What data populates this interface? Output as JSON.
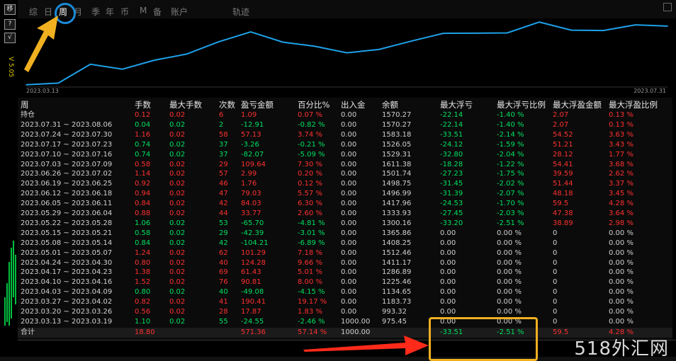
{
  "toolbar": {
    "buttons": [
      "移",
      "?",
      "√"
    ],
    "version": "V 5.05"
  },
  "tabs": [
    {
      "label": "综",
      "active": false
    },
    {
      "label": "日",
      "active": false
    },
    {
      "label": "周",
      "active": true
    },
    {
      "label": "月",
      "active": false
    },
    {
      "label": "季",
      "active": false
    },
    {
      "label": "年",
      "active": false
    },
    {
      "label": "币",
      "active": false
    },
    {
      "label": "M",
      "active": false
    },
    {
      "label": "备",
      "active": false
    },
    {
      "label": "账户",
      "active": false
    },
    {
      "label": "轨迹",
      "active": false
    }
  ],
  "chart_data": {
    "type": "line",
    "x_start": "2023.03.13",
    "x_end": "2023.07.31",
    "x": [
      "2023.03.13",
      "2023.03.20",
      "2023.03.27",
      "2023.04.03",
      "2023.04.10",
      "2023.04.17",
      "2023.04.24",
      "2023.05.01",
      "2023.05.08",
      "2023.05.15",
      "2023.05.22",
      "2023.05.29",
      "2023.06.05",
      "2023.06.12",
      "2023.06.19",
      "2023.06.26",
      "2023.07.03",
      "2023.07.10",
      "2023.07.17",
      "2023.07.24",
      "2023.07.31"
    ],
    "values": [
      975.45,
      993.32,
      1183.73,
      1134.65,
      1225.46,
      1286.89,
      1411.17,
      1512.46,
      1408.25,
      1365.86,
      1300.16,
      1333.93,
      1417.96,
      1496.99,
      1498.75,
      1501.74,
      1611.38,
      1529.31,
      1526.05,
      1583.18,
      1570.27
    ],
    "ylim": [
      960,
      1620
    ],
    "grid": false,
    "color": "#1ea0e8"
  },
  "table": {
    "headers": [
      "周",
      "手数",
      "最大手数",
      "次数",
      "盈亏金额",
      "百分比%",
      "出入金",
      "余额",
      "最大浮亏",
      "最大浮亏比例",
      "最大浮盈金额",
      "最大浮盈比例"
    ],
    "rows": [
      [
        "持仓",
        "0.12",
        "0.02",
        "6",
        "1.09",
        "0.07 %",
        "0.00",
        "1570.27",
        "-22.14",
        "-1.40 %",
        "2.07",
        "0.13 %"
      ],
      [
        "2023.07.31 ~ 2023.08.06",
        "0.04",
        "0.02",
        "2",
        "-12.91",
        "-0.82 %",
        "0.00",
        "1570.27",
        "-22.14",
        "-1.40 %",
        "2.07",
        "0.13 %"
      ],
      [
        "2023.07.24 ~ 2023.07.30",
        "1.16",
        "0.02",
        "58",
        "57.13",
        "3.74 %",
        "0.00",
        "1583.18",
        "-33.51",
        "-2.14 %",
        "54.52",
        "3.63 %"
      ],
      [
        "2023.07.17 ~ 2023.07.23",
        "0.74",
        "0.02",
        "37",
        "-3.26",
        "-0.21 %",
        "0.00",
        "1526.05",
        "-24.12",
        "-1.59 %",
        "51.21",
        "3.43 %"
      ],
      [
        "2023.07.10 ~ 2023.07.16",
        "0.74",
        "0.02",
        "37",
        "-82.07",
        "-5.09 %",
        "0.00",
        "1529.31",
        "-32.80",
        "-2.04 %",
        "28.12",
        "1.77 %"
      ],
      [
        "2023.07.03 ~ 2023.07.09",
        "0.58",
        "0.02",
        "29",
        "109.64",
        "7.30 %",
        "0.00",
        "1611.38",
        "-18.28",
        "-1.22 %",
        "54.41",
        "3.68 %"
      ],
      [
        "2023.06.26 ~ 2023.07.02",
        "1.14",
        "0.02",
        "57",
        "2.99",
        "0.20 %",
        "0.00",
        "1501.74",
        "-27.23",
        "-1.75 %",
        "39.59",
        "2.62 %"
      ],
      [
        "2023.06.19 ~ 2023.06.25",
        "0.92",
        "0.02",
        "46",
        "1.76",
        "0.12 %",
        "0.00",
        "1498.75",
        "-31.45",
        "-2.02 %",
        "51.44",
        "3.37 %"
      ],
      [
        "2023.06.12 ~ 2023.06.18",
        "0.94",
        "0.02",
        "47",
        "79.03",
        "5.57 %",
        "0.00",
        "1496.99",
        "-31.39",
        "-2.07 %",
        "48.18",
        "3.45 %"
      ],
      [
        "2023.06.05 ~ 2023.06.11",
        "0.84",
        "0.02",
        "42",
        "84.03",
        "6.30 %",
        "0.00",
        "1417.96",
        "-24.53",
        "-1.70 %",
        "59.5",
        "4.28 %"
      ],
      [
        "2023.05.29 ~ 2023.06.04",
        "0.88",
        "0.02",
        "44",
        "33.77",
        "2.60 %",
        "0.00",
        "1333.93",
        "-27.45",
        "-2.03 %",
        "47.38",
        "3.64 %"
      ],
      [
        "2023.05.22 ~ 2023.05.28",
        "1.06",
        "0.02",
        "53",
        "-65.70",
        "-4.81 %",
        "0.00",
        "1300.16",
        "-33.20",
        "-2.51 %",
        "38.89",
        "2.98 %"
      ],
      [
        "2023.05.15 ~ 2023.05.21",
        "0.58",
        "0.02",
        "29",
        "-42.39",
        "-3.01 %",
        "0.00",
        "1365.86",
        "0.00",
        "0.00 %",
        "0",
        "0.00 %"
      ],
      [
        "2023.05.08 ~ 2023.05.14",
        "0.84",
        "0.02",
        "42",
        "-104.21",
        "-6.89 %",
        "0.00",
        "1408.25",
        "0.00",
        "0.00 %",
        "0",
        "0.00 %"
      ],
      [
        "2023.05.01 ~ 2023.05.07",
        "1.24",
        "0.02",
        "62",
        "101.29",
        "7.18 %",
        "0.00",
        "1512.46",
        "0.00",
        "0.00 %",
        "0",
        "0.00 %"
      ],
      [
        "2023.04.24 ~ 2023.04.30",
        "0.80",
        "0.02",
        "40",
        "124.28",
        "9.66 %",
        "0.00",
        "1411.17",
        "0.00",
        "0.00 %",
        "0",
        "0.00 %"
      ],
      [
        "2023.04.17 ~ 2023.04.23",
        "1.38",
        "0.02",
        "69",
        "61.43",
        "5.01 %",
        "0.00",
        "1286.89",
        "0.00",
        "0.00 %",
        "0",
        "0.00 %"
      ],
      [
        "2023.04.10 ~ 2023.04.16",
        "1.52",
        "0.02",
        "76",
        "90.81",
        "8.00 %",
        "0.00",
        "1225.46",
        "0.00",
        "0.00 %",
        "0",
        "0.00 %"
      ],
      [
        "2023.04.03 ~ 2023.04.09",
        "0.80",
        "0.02",
        "40",
        "-49.08",
        "-4.15 %",
        "0.00",
        "1134.65",
        "0.00",
        "0.00 %",
        "0",
        "0.00 %"
      ],
      [
        "2023.03.27 ~ 2023.04.02",
        "0.82",
        "0.02",
        "41",
        "190.41",
        "19.17 %",
        "0.00",
        "1183.73",
        "0.00",
        "0.00 %",
        "0",
        "0.00 %"
      ],
      [
        "2023.03.20 ~ 2023.03.26",
        "0.56",
        "0.02",
        "28",
        "17.87",
        "1.83 %",
        "0.00",
        "993.32",
        "0.00",
        "0.00 %",
        "0",
        "0.00 %"
      ],
      [
        "2023.03.13 ~ 2023.03.19",
        "1.10",
        "0.02",
        "55",
        "-24.55",
        "-2.46 %",
        "1000.00",
        "975.45",
        "0.00",
        "0.00 %",
        "0",
        "0.00 %"
      ]
    ],
    "total": [
      "合计",
      "18.80",
      "",
      "",
      "571.36",
      "57.14 %",
      "1000.00",
      "",
      "-33.51",
      "-2.51 %",
      "59.5",
      "4.28 %"
    ]
  },
  "watermark": "518外汇网",
  "colors": {
    "positive": "#00e060",
    "negative": "#ff3030",
    "accent_circle": "#1a8ad8",
    "highlight_box": "#f0b020",
    "arrow_red": "#ff2a1a",
    "arrow_yellow": "#f0b020"
  }
}
